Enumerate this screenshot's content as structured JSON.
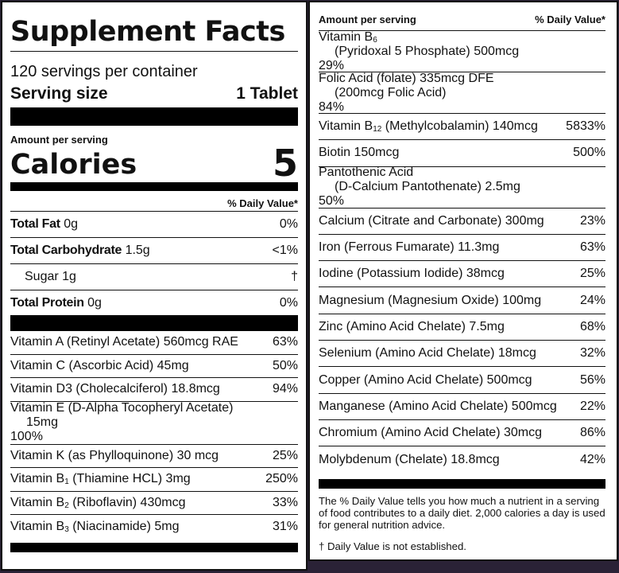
{
  "title": "Supplement Facts",
  "servings_per_container": "120 servings per container",
  "serving_size": {
    "label": "Serving size",
    "value": "1 Tablet"
  },
  "amount_per_serving": "Amount per serving",
  "calories": {
    "label": "Calories",
    "value": "5"
  },
  "daily_value_header": "% Daily Value*",
  "macros": [
    {
      "name": "Total Fat",
      "amount": "0g",
      "dv": "0%",
      "bold": true
    },
    {
      "name": "Total Carbohydrate",
      "amount": "1.5g",
      "dv": "<1%",
      "bold": true
    },
    {
      "name": "Sugar",
      "amount": "1g",
      "dv": "†",
      "bold": false,
      "indent": true
    },
    {
      "name": "Total Protein",
      "amount": "0g",
      "dv": "0%",
      "bold": true
    }
  ],
  "left_nutrients": [
    {
      "pre": "Vitamin A (Retinyl Acetate) 560mcg RAE",
      "dv": "63%"
    },
    {
      "pre": "Vitamin C (Ascorbic Acid) 45mg",
      "dv": "50%"
    },
    {
      "pre": "Vitamin D3 (Cholecalciferol) 18.8mcg",
      "dv": "94%"
    },
    {
      "pre": "Vitamin E (D-Alpha Tocopheryl Acetate)",
      "line2": "15mg",
      "dv": "100%"
    },
    {
      "pre": "Vitamin K (as Phylloquinone) 30 mcg",
      "dv": "25%"
    },
    {
      "pre": "Vitamin B",
      "sub": "1",
      "post": " (Thiamine HCL) 3mg",
      "dv": "250%"
    },
    {
      "pre": "Vitamin B",
      "sub": "2",
      "post": " (Riboflavin) 430mcg",
      "dv": "33%"
    },
    {
      "pre": "Vitamin B",
      "sub": "3",
      "post": " (Niacinamide) 5mg",
      "dv": "31%"
    }
  ],
  "right_header": {
    "amount": "Amount per serving",
    "dv": "% Daily Value*"
  },
  "right_nutrients": [
    {
      "pre": "Vitamin B",
      "sub": "6",
      "line2": "(Pyridoxal 5 Phosphate) 500mcg",
      "dv": "29%"
    },
    {
      "pre": "Folic Acid (folate) 335mcg DFE",
      "line2": "(200mcg Folic Acid)",
      "dv": "84%"
    },
    {
      "pre": "Vitamin B",
      "sub": "12",
      "post": " (Methylcobalamin) 140mcg",
      "dv": "5833%"
    },
    {
      "pre": "Biotin 150mcg",
      "dv": "500%"
    },
    {
      "pre": "Pantothenic Acid",
      "line2": "(D-Calcium Pantothenate) 2.5mg",
      "dv": "50%"
    },
    {
      "pre": "Calcium (Citrate and Carbonate) 300mg",
      "dv": "23%"
    },
    {
      "pre": "Iron (Ferrous Fumarate) 11.3mg",
      "dv": "63%"
    },
    {
      "pre": "Iodine (Potassium Iodide) 38mcg",
      "dv": "25%"
    },
    {
      "pre": "Magnesium (Magnesium Oxide) 100mg",
      "dv": "24%"
    },
    {
      "pre": "Zinc (Amino Acid Chelate) 7.5mg",
      "dv": "68%"
    },
    {
      "pre": "Selenium (Amino Acid Chelate) 18mcg",
      "dv": "32%"
    },
    {
      "pre": "Copper (Amino Acid Chelate) 500mcg",
      "dv": "56%"
    },
    {
      "pre": "Manganese (Amino Acid Chelate) 500mcg",
      "dv": "22%"
    },
    {
      "pre": "Chromium (Amino Acid Chelate) 30mcg",
      "dv": "86%"
    },
    {
      "pre": "Molybdenum (Chelate) 18.8mcg",
      "dv": "42%"
    }
  ],
  "footnote": "The % Daily Value tells you how much a nutrient in a serving of food contributes to a daily diet. 2,000 calories a day is used for general nutrition advice.",
  "dagger_note": "† Daily Value is not established."
}
